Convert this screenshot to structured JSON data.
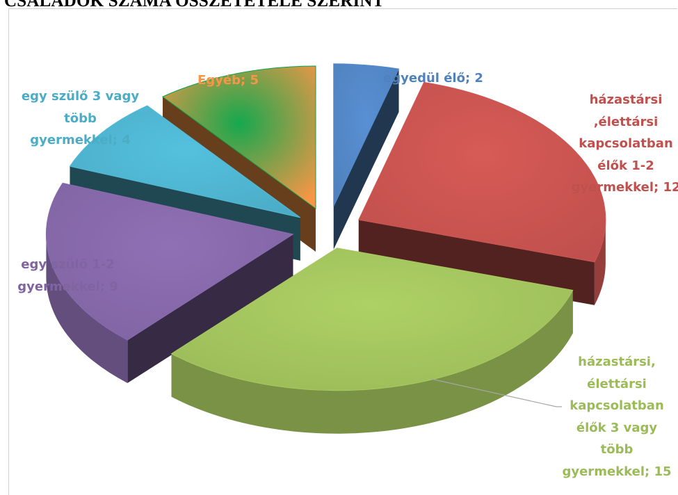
{
  "title": "CSALÁDOK SZÁMA ÖSSZETÉTELE SZERINT",
  "chart_data": {
    "type": "pie",
    "style": "3d-exploded",
    "legend": "none",
    "data_labels": "category; value",
    "series": [
      {
        "name": "egyedül élő",
        "value": 2,
        "color": "#4F81BD",
        "label": "egyedül élő; 2"
      },
      {
        "name": "házastársi ,élettársi kapcsolatban élők 1-2 gyermekkel",
        "value": 12,
        "color": "#C0504D",
        "label": "házastársi\n,élettársi\nkapcsolatban\nélők 1-2\ngyermekkel; 12"
      },
      {
        "name": "házastársi, élettársi kapcsolatban élők 3 vagy több gyermekkel",
        "value": 15,
        "color": "#9BBB59",
        "label": "házastársi,\nélettársi\nkapcsolatban\nélők 3 vagy\ntöbb\ngyermekkel; 15"
      },
      {
        "name": "egy szülő 1-2 gyermekkel",
        "value": 9,
        "color": "#8064A2",
        "label": "egy szülő 1-2\ngyermekkel; 9"
      },
      {
        "name": "egy szülő 3 vagy több gyermekkel",
        "value": 4,
        "color": "#4BACC6",
        "label": "egy szülő 3 vagy\ntöbb\ngyermekkel; 4"
      },
      {
        "name": "Egyéb",
        "value": 5,
        "color": "#F79646",
        "label": "Egyéb; 5"
      }
    ]
  }
}
